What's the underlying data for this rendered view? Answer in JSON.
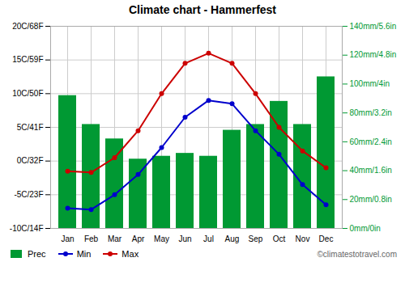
{
  "chart_data": {
    "type": "bar",
    "title": "Climate chart - Hammerfest",
    "categories": [
      "Jan",
      "Feb",
      "Mar",
      "Apr",
      "May",
      "Jun",
      "Jul",
      "Aug",
      "Sep",
      "Oct",
      "Nov",
      "Dec"
    ],
    "series": [
      {
        "name": "Prec",
        "type": "bar",
        "axis": "y2",
        "color": "#009933",
        "values": [
          92,
          72,
          62,
          48,
          50,
          52,
          50,
          68,
          72,
          88,
          72,
          105
        ]
      },
      {
        "name": "Min",
        "type": "line",
        "marker": "circle",
        "color": "#0000cc",
        "values": [
          -7.0,
          -7.2,
          -5.0,
          -2.0,
          2.0,
          6.5,
          9.0,
          8.5,
          4.5,
          1.0,
          -3.5,
          -6.5
        ]
      },
      {
        "name": "Max",
        "type": "line",
        "marker": "circle",
        "color": "#cc0000",
        "values": [
          -1.5,
          -1.7,
          0.5,
          4.5,
          10.0,
          14.5,
          16.0,
          14.5,
          10.0,
          5.0,
          1.5,
          -1.0
        ]
      }
    ],
    "ylim": [
      -10,
      20
    ],
    "yticks": [
      {
        "value": -10,
        "label": "-10C/14F"
      },
      {
        "value": -5,
        "label": "-5C/23F"
      },
      {
        "value": 0,
        "label": "0C/32F"
      },
      {
        "value": 5,
        "label": "5C/41F"
      },
      {
        "value": 10,
        "label": "10C/50F"
      },
      {
        "value": 15,
        "label": "15C/59F"
      },
      {
        "value": 20,
        "label": "20C/68F"
      }
    ],
    "y2lim": [
      0,
      140
    ],
    "y2ticks": [
      {
        "value": 0,
        "label": "0mm/0in"
      },
      {
        "value": 20,
        "label": "20mm/0.8in"
      },
      {
        "value": 40,
        "label": "40mm/1.6in"
      },
      {
        "value": 60,
        "label": "60mm/2.4in"
      },
      {
        "value": 80,
        "label": "80mm/3.2in"
      },
      {
        "value": 100,
        "label": "100mm/4in"
      },
      {
        "value": 120,
        "label": "120mm/4.8in"
      },
      {
        "value": 140,
        "label": "140mm/5.6in"
      }
    ],
    "grid": true,
    "legend": "bottom",
    "annotations": [
      "©climatestotravel.com"
    ]
  }
}
